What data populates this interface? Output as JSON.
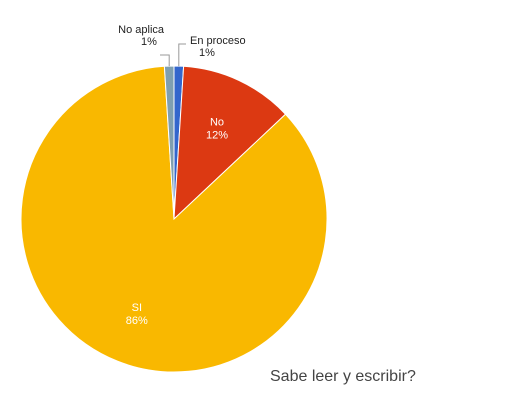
{
  "chart_data": {
    "type": "pie",
    "title": "Sabe leer y escribir?",
    "slices": [
      {
        "label": "En proceso",
        "value": 1,
        "value_label": "1%",
        "color": "#3366cc"
      },
      {
        "label": "No",
        "value": 12,
        "value_label": "12%",
        "color": "#dc3912"
      },
      {
        "label": "SI",
        "value": 86,
        "value_label": "86%",
        "color": "#f9b800"
      },
      {
        "label": "No aplica",
        "value": 1,
        "value_label": "1%",
        "color": "#7f9fb0"
      }
    ],
    "legend": "none",
    "start": "top",
    "direction": "clockwise"
  }
}
